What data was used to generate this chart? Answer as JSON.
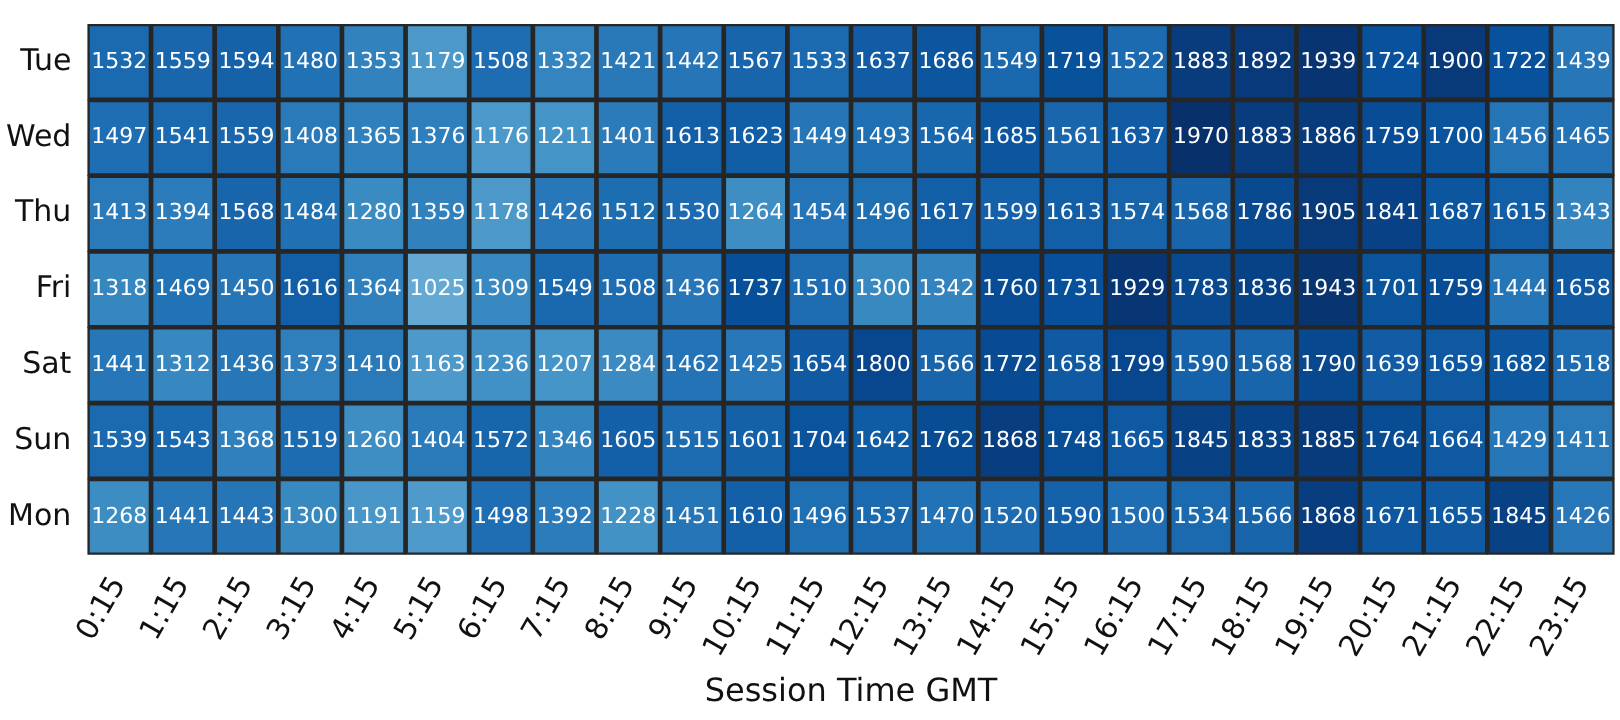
{
  "chart_data": {
    "type": "heatmap",
    "xlabel": "Session Time GMT",
    "data_labels": true,
    "categories": [
      "0:15",
      "1:15",
      "2:15",
      "3:15",
      "4:15",
      "5:15",
      "6:15",
      "7:15",
      "8:15",
      "9:15",
      "10:15",
      "11:15",
      "12:15",
      "13:15",
      "14:15",
      "15:15",
      "16:15",
      "17:15",
      "18:15",
      "19:15",
      "20:15",
      "21:15",
      "22:15",
      "23:15"
    ],
    "y_categories": [
      "Tue",
      "Wed",
      "Thu",
      "Fri",
      "Sat",
      "Sun",
      "Mon"
    ],
    "cells": [
      [
        1532,
        1559,
        1594,
        1480,
        1353,
        1179,
        1508,
        1332,
        1421,
        1442,
        1567,
        1533,
        1637,
        1686,
        1549,
        1719,
        1522,
        1883,
        1892,
        1939,
        1724,
        1900,
        1722,
        1439
      ],
      [
        1497,
        1541,
        1559,
        1408,
        1365,
        1376,
        1176,
        1211,
        1401,
        1613,
        1623,
        1449,
        1493,
        1564,
        1685,
        1561,
        1637,
        1970,
        1883,
        1886,
        1759,
        1700,
        1456,
        1465
      ],
      [
        1413,
        1394,
        1568,
        1484,
        1280,
        1359,
        1178,
        1426,
        1512,
        1530,
        1264,
        1454,
        1496,
        1617,
        1599,
        1613,
        1574,
        1568,
        1786,
        1905,
        1841,
        1687,
        1615,
        1343
      ],
      [
        1318,
        1469,
        1450,
        1616,
        1364,
        1025,
        1309,
        1549,
        1508,
        1436,
        1737,
        1510,
        1300,
        1342,
        1760,
        1731,
        1929,
        1783,
        1836,
        1943,
        1701,
        1759,
        1444,
        1658
      ],
      [
        1441,
        1312,
        1436,
        1373,
        1410,
        1163,
        1236,
        1207,
        1284,
        1462,
        1425,
        1654,
        1800,
        1566,
        1772,
        1658,
        1799,
        1590,
        1568,
        1790,
        1639,
        1659,
        1682,
        1518
      ],
      [
        1539,
        1543,
        1368,
        1519,
        1260,
        1404,
        1572,
        1346,
        1605,
        1515,
        1601,
        1704,
        1642,
        1762,
        1868,
        1748,
        1665,
        1845,
        1833,
        1885,
        1764,
        1664,
        1429,
        1411
      ],
      [
        1268,
        1441,
        1443,
        1300,
        1191,
        1159,
        1498,
        1392,
        1228,
        1451,
        1610,
        1496,
        1537,
        1470,
        1520,
        1590,
        1500,
        1534,
        1566,
        1868,
        1671,
        1655,
        1845,
        1426
      ]
    ]
  }
}
